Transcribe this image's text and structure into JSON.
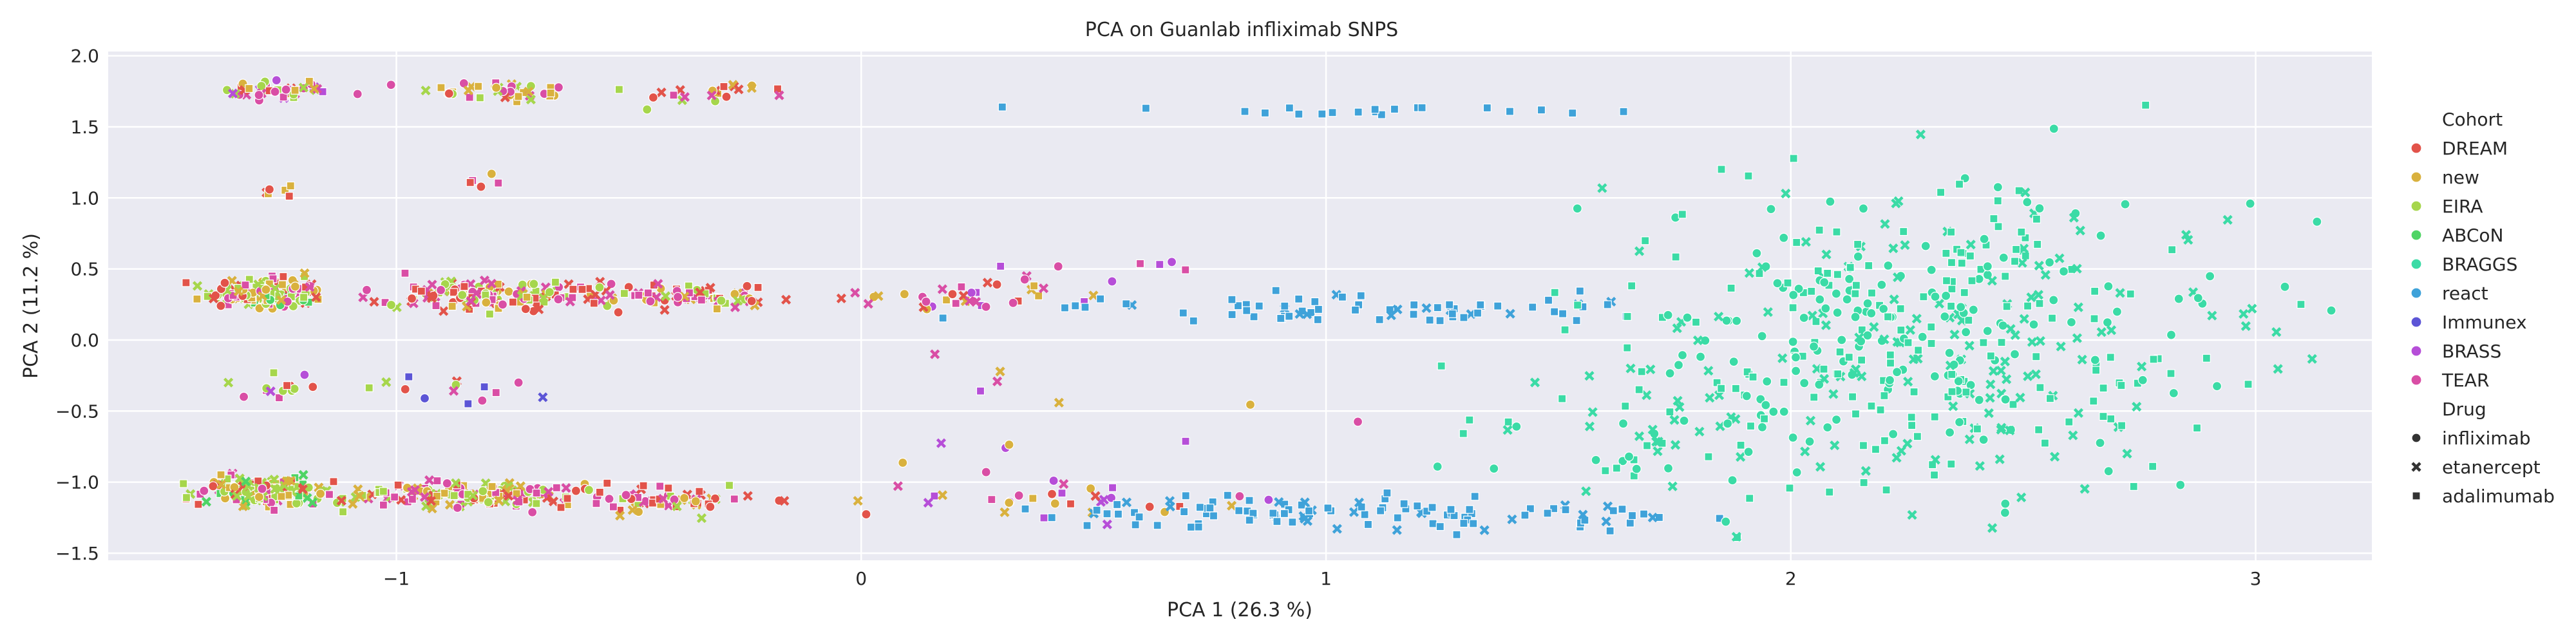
{
  "chart_data": {
    "type": "scatter",
    "title": "PCA on Guanlab infliximab SNPS",
    "xlabel": "PCA 1 (26.3 %)",
    "ylabel": "PCA 2 (11.2 %)",
    "xlim": [
      -1.62,
      3.25
    ],
    "ylim": [
      -1.55,
      2.03
    ],
    "xticks": [
      -1,
      0,
      1,
      2,
      3
    ],
    "yticks": [
      -1.5,
      -1.0,
      -0.5,
      0.0,
      0.5,
      1.0,
      1.5,
      2.0
    ],
    "xtick_labels": [
      "−1",
      "0",
      "1",
      "2",
      "3"
    ],
    "ytick_labels": [
      "−1.5",
      "−1.0",
      "−0.5",
      "0.0",
      "0.5",
      "1.0",
      "1.5",
      "2.0"
    ],
    "grid": true,
    "legend_position": "right",
    "hue_title": "Cohort",
    "style_title": "Drug",
    "cohorts": [
      {
        "name": "DREAM",
        "color": "#e2534a"
      },
      {
        "name": "new",
        "color": "#d9b13e"
      },
      {
        "name": "EIRA",
        "color": "#a6d64c"
      },
      {
        "name": "ABCoN",
        "color": "#4fd465"
      },
      {
        "name": "BRAGGS",
        "color": "#3bdba6"
      },
      {
        "name": "react",
        "color": "#3fa2d9"
      },
      {
        "name": "Immunex",
        "color": "#5c55d6"
      },
      {
        "name": "BRASS",
        "color": "#b64ed8"
      },
      {
        "name": "TEAR",
        "color": "#d94ea5"
      }
    ],
    "drugs": [
      {
        "name": "infliximab",
        "marker": "circle"
      },
      {
        "name": "etanercept",
        "marker": "x"
      },
      {
        "name": "adalimumab",
        "marker": "square"
      }
    ],
    "clusters": [
      {
        "cx": -1.25,
        "cy": 1.76,
        "sx": 0.06,
        "sy": 0.04,
        "n": 45,
        "cohorts": [
          0,
          1,
          2,
          2,
          7,
          8,
          8
        ],
        "drugs": [
          0,
          1,
          2
        ]
      },
      {
        "cx": -0.78,
        "cy": 1.75,
        "sx": 0.09,
        "sy": 0.04,
        "n": 40,
        "cohorts": [
          0,
          1,
          1,
          8,
          8,
          2
        ],
        "drugs": [
          0,
          1,
          2
        ]
      },
      {
        "cx": -0.33,
        "cy": 1.73,
        "sx": 0.11,
        "sy": 0.05,
        "n": 22,
        "cohorts": [
          0,
          0,
          8,
          1,
          2
        ],
        "drugs": [
          0,
          1,
          2
        ]
      },
      {
        "cx": -1.28,
        "cy": 0.33,
        "sx": 0.06,
        "sy": 0.05,
        "n": 170,
        "cohorts": [
          2,
          2,
          1,
          1,
          0,
          8,
          8,
          3
        ],
        "drugs": [
          0,
          1,
          2
        ]
      },
      {
        "cx": -0.8,
        "cy": 0.32,
        "sx": 0.12,
        "sy": 0.05,
        "n": 150,
        "cohorts": [
          0,
          1,
          2,
          8,
          8,
          2
        ],
        "drugs": [
          0,
          1,
          2
        ]
      },
      {
        "cx": -0.38,
        "cy": 0.3,
        "sx": 0.1,
        "sy": 0.05,
        "n": 75,
        "cohorts": [
          0,
          0,
          8,
          8,
          1,
          2
        ],
        "drugs": [
          0,
          1,
          2
        ]
      },
      {
        "cx": -1.28,
        "cy": -1.06,
        "sx": 0.07,
        "sy": 0.05,
        "n": 180,
        "cohorts": [
          2,
          2,
          1,
          0,
          8,
          3
        ],
        "drugs": [
          0,
          1,
          2
        ]
      },
      {
        "cx": -0.85,
        "cy": -1.09,
        "sx": 0.13,
        "sy": 0.05,
        "n": 150,
        "cohorts": [
          0,
          1,
          2,
          8,
          8,
          2
        ],
        "drugs": [
          0,
          1,
          2
        ]
      },
      {
        "cx": -0.43,
        "cy": -1.12,
        "sx": 0.11,
        "sy": 0.05,
        "n": 75,
        "cohorts": [
          0,
          1,
          2,
          8,
          8,
          0
        ],
        "drugs": [
          0,
          1,
          2
        ]
      },
      {
        "cx": -1.25,
        "cy": -0.33,
        "sx": 0.05,
        "sy": 0.05,
        "n": 14,
        "cohorts": [
          0,
          2,
          7,
          8
        ],
        "drugs": [
          0,
          1,
          2
        ]
      },
      {
        "cx": -0.85,
        "cy": -0.35,
        "sx": 0.1,
        "sy": 0.05,
        "n": 14,
        "cohorts": [
          0,
          2,
          8,
          6
        ],
        "drugs": [
          0,
          1,
          2
        ]
      },
      {
        "cx": -1.25,
        "cy": 1.05,
        "sx": 0.06,
        "sy": 0.03,
        "n": 6,
        "cohorts": [
          0,
          2,
          1
        ],
        "drugs": [
          0,
          1,
          2
        ]
      },
      {
        "cx": -0.82,
        "cy": 1.08,
        "sx": 0.06,
        "sy": 0.05,
        "n": 5,
        "cohorts": [
          0,
          1,
          6,
          8
        ],
        "drugs": [
          0,
          1,
          2
        ]
      },
      {
        "cx": 0.2,
        "cy": 0.3,
        "sx": 0.12,
        "sy": 0.05,
        "n": 35,
        "cohorts": [
          0,
          1,
          8,
          7
        ],
        "drugs": [
          0,
          1,
          2
        ]
      },
      {
        "cx": 0.4,
        "cy": -1.12,
        "sx": 0.18,
        "sy": 0.06,
        "n": 30,
        "cohorts": [
          7,
          7,
          8,
          0,
          1
        ],
        "drugs": [
          0,
          1,
          2
        ]
      },
      {
        "cx": 0.35,
        "cy": -0.55,
        "sx": 0.25,
        "sy": 0.3,
        "n": 16,
        "cohorts": [
          7,
          7,
          8,
          1
        ],
        "drugs": [
          0,
          1,
          2
        ]
      },
      {
        "cx": 0.5,
        "cy": 0.45,
        "sx": 0.15,
        "sy": 0.12,
        "n": 10,
        "cohorts": [
          7,
          8
        ],
        "drugs": [
          0,
          1,
          2
        ]
      },
      {
        "cx": 1.05,
        "cy": 0.22,
        "sx": 0.33,
        "sy": 0.05,
        "n": 70,
        "cohorts": [
          5
        ],
        "drugs": [
          2,
          2,
          2,
          1
        ]
      },
      {
        "cx": 1.1,
        "cy": -1.22,
        "sx": 0.35,
        "sy": 0.05,
        "n": 110,
        "cohorts": [
          5
        ],
        "drugs": [
          2,
          2,
          2,
          1
        ]
      },
      {
        "cx": 1.1,
        "cy": 1.62,
        "sx": 0.4,
        "sy": 0.03,
        "n": 20,
        "cohorts": [
          5
        ],
        "drugs": [
          2
        ]
      },
      {
        "cx": 2.3,
        "cy": 0.05,
        "sx": 0.35,
        "sy": 0.55,
        "n": 460,
        "cohorts": [
          4
        ],
        "drugs": [
          0,
          1,
          2
        ]
      },
      {
        "cx": 1.8,
        "cy": -0.5,
        "sx": 0.2,
        "sy": 0.4,
        "n": 60,
        "cohorts": [
          4
        ],
        "drugs": [
          0,
          1,
          2
        ]
      }
    ]
  }
}
